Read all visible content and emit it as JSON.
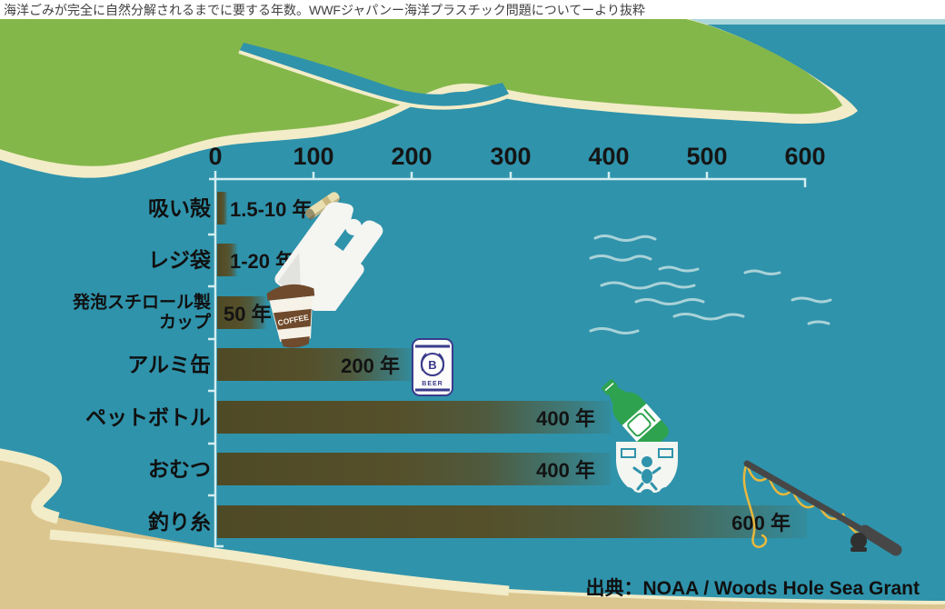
{
  "title": "海洋ごみが完全に自然分解されるまでに要する年数。WWFジャパンー海洋プラスチック問題についてーより抜粋",
  "source_label": "出典：NOAA / Woods Hole Sea Grant",
  "chart_data": {
    "type": "bar",
    "orientation": "horizontal",
    "title": "海洋ごみが完全に自然分解されるまでに要する年数",
    "xlim": [
      0,
      600
    ],
    "x_ticks": [
      "0",
      "100",
      "200",
      "300",
      "400",
      "500",
      "600"
    ],
    "x_unit": "年",
    "grid": false,
    "legend": "none",
    "bar_color": "#55502a",
    "categories": [
      "吸い殻",
      "レジ袋",
      "発泡スチロール製カップ",
      "アルミ缶",
      "ペットボトル",
      "おむつ",
      "釣り糸"
    ],
    "values": [
      10,
      20,
      50,
      200,
      400,
      400,
      600
    ],
    "rows": [
      {
        "label": "吸い殻",
        "label2": "",
        "value_label": "1.5-10 年",
        "years": 10,
        "icon": "cigarette-butt-icon"
      },
      {
        "label": "レジ袋",
        "label2": "",
        "value_label": "1-20 年",
        "years": 20,
        "icon": "plastic-bag-icon"
      },
      {
        "label": "発泡スチロール製",
        "label2": "カップ",
        "value_label": "50 年",
        "years": 50,
        "icon": "coffee-cup-icon"
      },
      {
        "label": "アルミ缶",
        "label2": "",
        "value_label": "200 年",
        "years": 200,
        "icon": "beer-can-icon"
      },
      {
        "label": "ペットボトル",
        "label2": "",
        "value_label": "400 年",
        "years": 400,
        "icon": "pet-bottle-icon"
      },
      {
        "label": "おむつ",
        "label2": "",
        "value_label": "400 年",
        "years": 400,
        "icon": "diaper-icon"
      },
      {
        "label": "釣り糸",
        "label2": "",
        "value_label": "600 年",
        "years": 600,
        "icon": "fishing-rod-icon"
      }
    ]
  },
  "icon_text": {
    "coffee_cup": "COFFEE",
    "beer_can_letter": "B",
    "beer_can_word": "BEER"
  },
  "colors": {
    "ocean": "#2f93ab",
    "land_green": "#84b74a",
    "beach_cream": "#f2ecc8",
    "sand_tan": "#dcc68f",
    "bar_olive": "#55502a",
    "axis_line": "#d3edf0",
    "text": "#111111",
    "coffee_brown": "#6f4a2c",
    "can_navy": "#3a3a8c",
    "bottle_green": "#2ea24e",
    "rod_gray": "#474747",
    "fishing_line_yellow": "#e9b83c"
  }
}
